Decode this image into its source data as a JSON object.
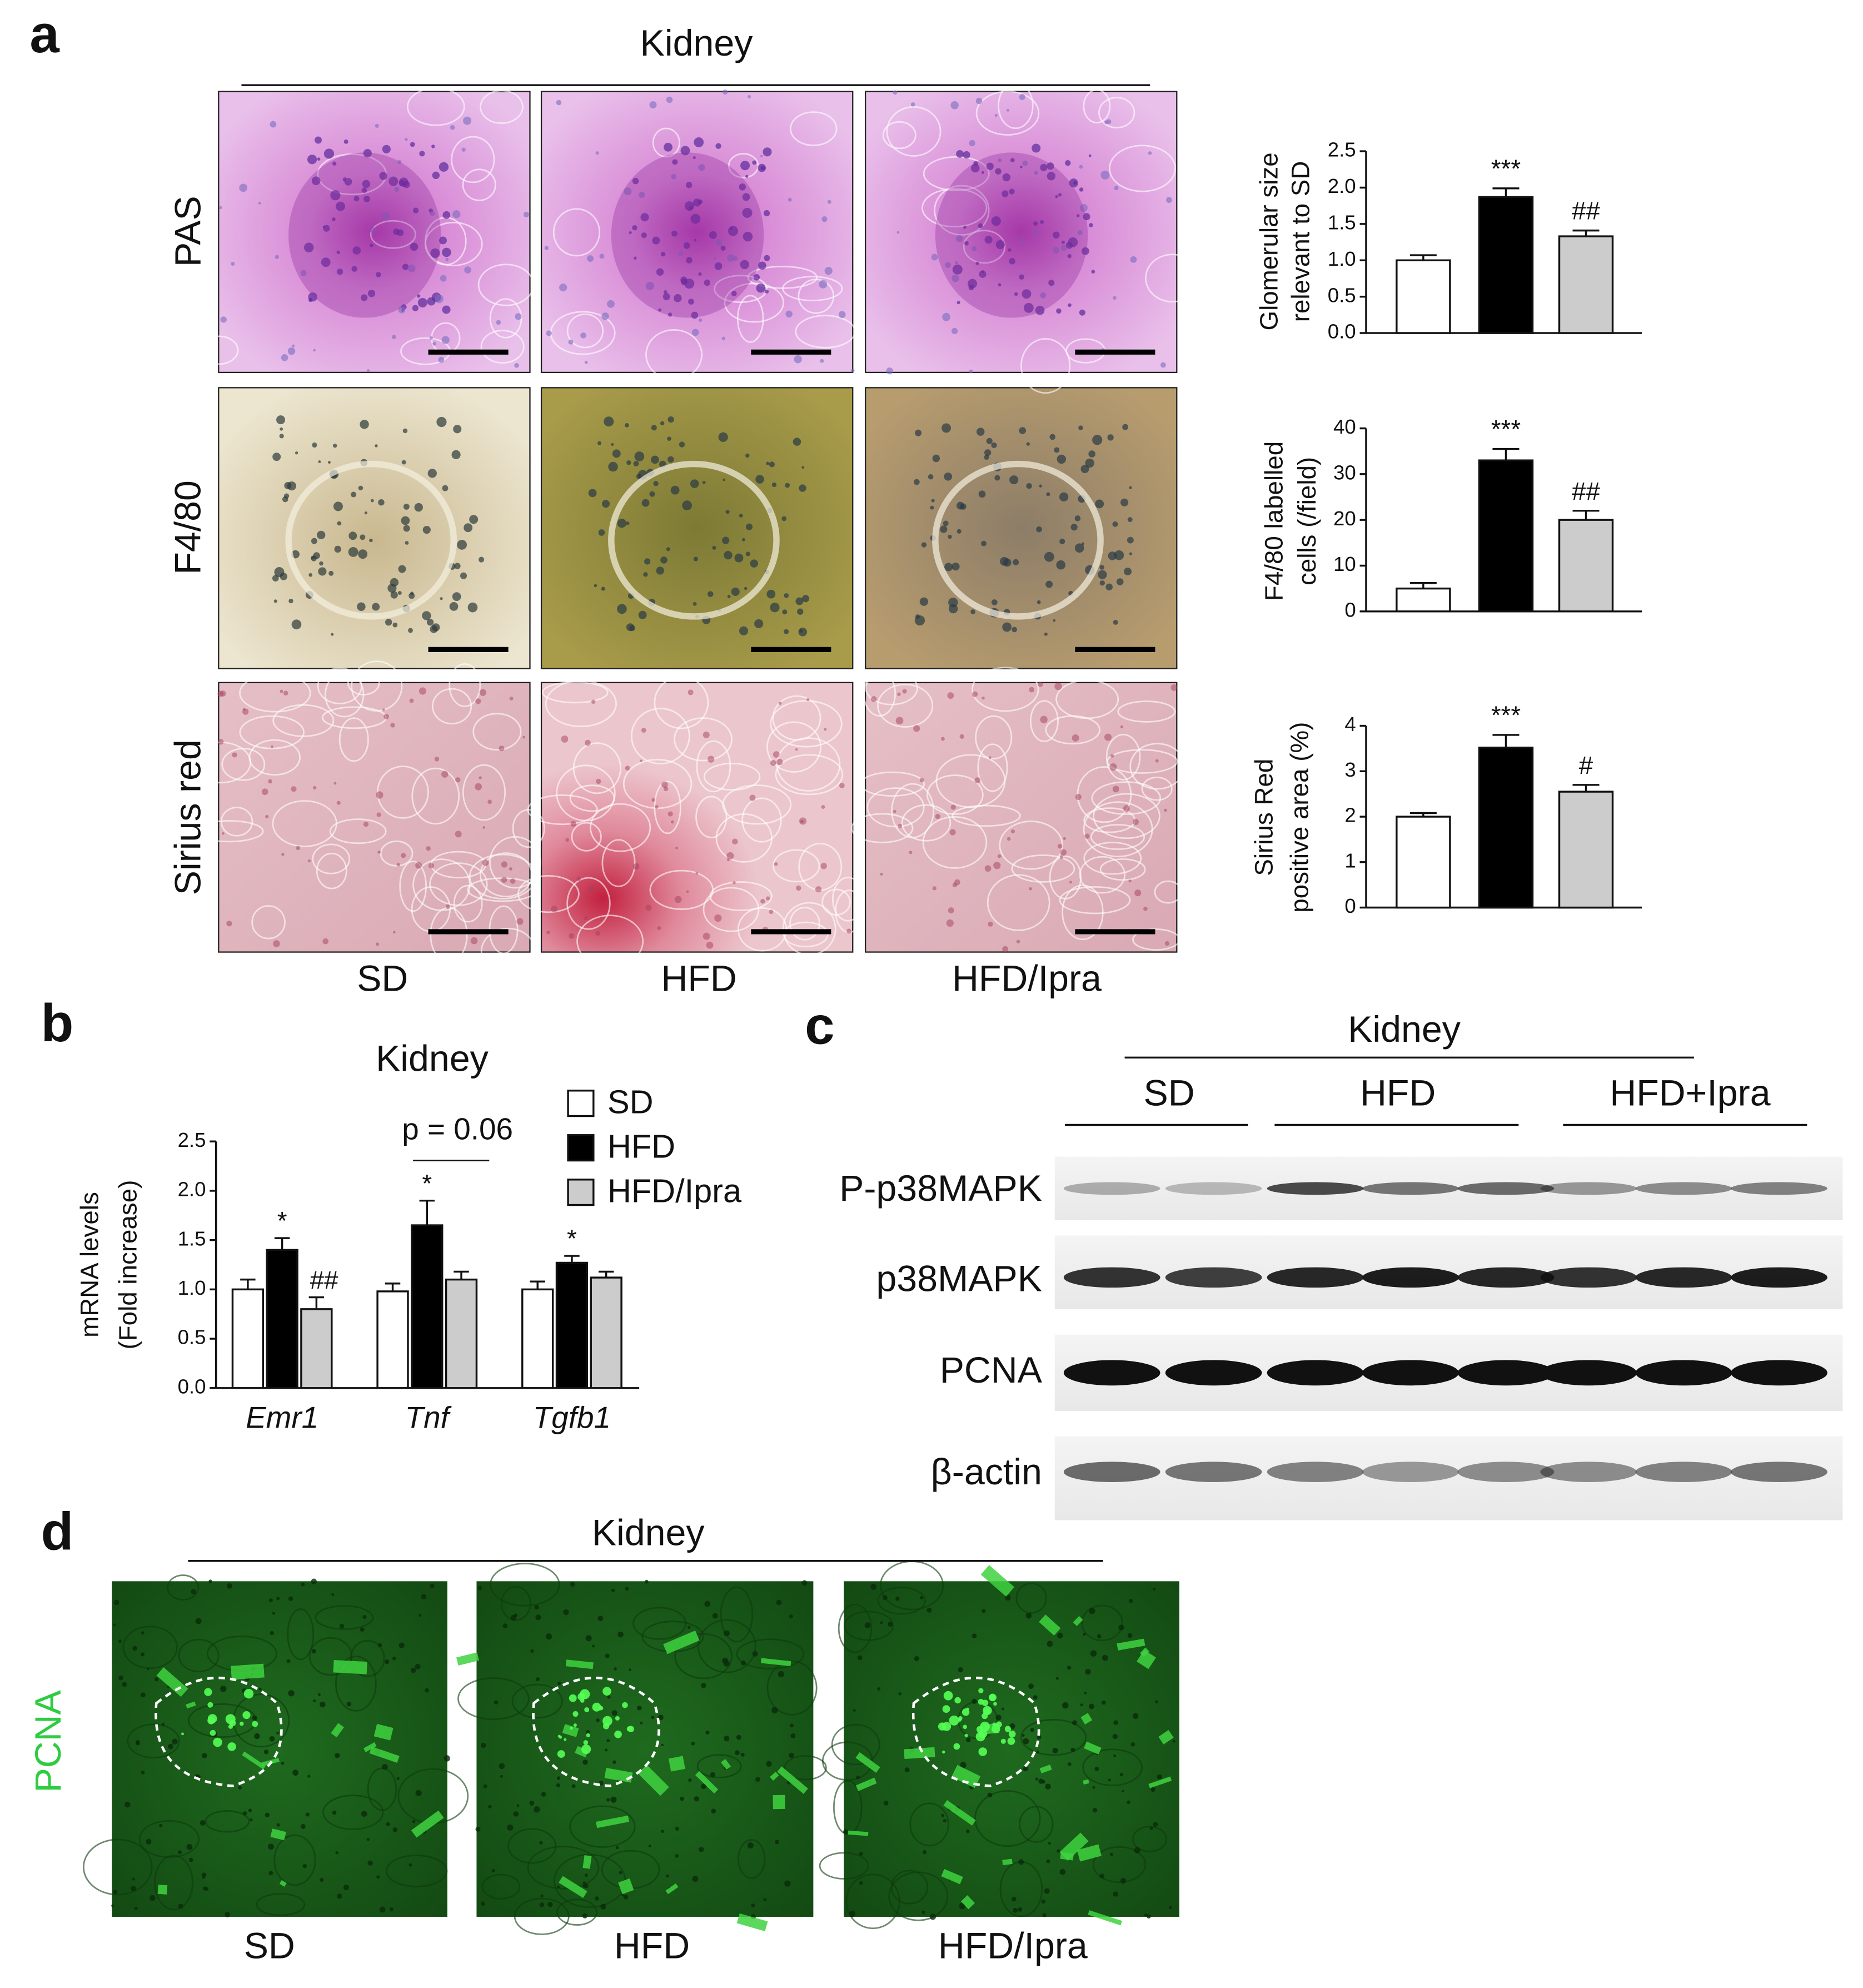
{
  "panel_labels": [
    "a",
    "b",
    "c",
    "d"
  ],
  "panel_a": {
    "title": "Kidney",
    "rows": [
      "PAS",
      "F4/80",
      "Sirius red"
    ],
    "columns": [
      "SD",
      "HFD",
      "HFD/Ipra"
    ]
  },
  "panel_c": {
    "title": "Kidney",
    "groups": [
      "SD",
      "HFD",
      "HFD+Ipra"
    ],
    "rows": [
      "P-p38MAPK",
      "p38MAPK",
      "PCNA",
      "β-actin"
    ]
  },
  "panel_d": {
    "title": "Kidney",
    "stain": "PCNA",
    "columns": [
      "SD",
      "HFD",
      "HFD/Ipra"
    ]
  },
  "chart_data": [
    {
      "type": "bar",
      "ylabel": [
        "Glomerular size",
        "relevant to SD"
      ],
      "values": [
        1.0,
        1.87,
        1.33
      ],
      "errors": [
        0.07,
        0.12,
        0.08
      ],
      "colors": [
        "#ffffff",
        "#000000",
        "#cccccc"
      ],
      "annotations": [
        null,
        "***",
        "##"
      ],
      "ylim": [
        0,
        2.5
      ],
      "yticks": [
        {
          "value": 0,
          "label": "0.0"
        },
        0.5,
        {
          "value": 1,
          "label": "1.0"
        },
        1.5,
        {
          "value": 2,
          "label": "2.0"
        },
        2.5
      ]
    },
    {
      "type": "bar",
      "ylabel": [
        "F4/80 labelled",
        "cells (/field)"
      ],
      "values": [
        5,
        33,
        20
      ],
      "errors": [
        1.2,
        2.5,
        2.0
      ],
      "colors": [
        "#ffffff",
        "#000000",
        "#cccccc"
      ],
      "annotations": [
        null,
        "***",
        "##"
      ],
      "ylim": [
        0,
        40
      ],
      "yticks": [
        0,
        10,
        20,
        30,
        40
      ]
    },
    {
      "type": "bar",
      "ylabel": [
        "Sirius Red",
        "positive area (%)"
      ],
      "values": [
        2.0,
        3.52,
        2.55
      ],
      "errors": [
        0.08,
        0.28,
        0.15
      ],
      "colors": [
        "#ffffff",
        "#000000",
        "#cccccc"
      ],
      "annotations": [
        null,
        "***",
        "#"
      ],
      "ylim": [
        0,
        4
      ],
      "yticks": [
        0,
        1,
        2,
        3,
        4
      ]
    },
    {
      "type": "grouped_bar",
      "title": "Kidney",
      "ylabel": [
        "mRNA levels",
        "(Fold increase)"
      ],
      "categories": [
        "Emr1",
        "Tnf",
        "Tgfb1"
      ],
      "series": [
        {
          "name": "SD",
          "color": "#ffffff",
          "values": [
            1.0,
            0.98,
            1.0
          ],
          "errors": [
            0.1,
            0.08,
            0.08
          ]
        },
        {
          "name": "HFD",
          "color": "#000000",
          "values": [
            1.4,
            1.65,
            1.27
          ],
          "errors": [
            0.12,
            0.25,
            0.07
          ],
          "annotations": [
            "*",
            "*",
            "*"
          ]
        },
        {
          "name": "HFD/Ipra",
          "color": "#cccccc",
          "values": [
            0.8,
            1.1,
            1.12
          ],
          "errors": [
            0.12,
            0.08,
            0.06
          ],
          "annotations": [
            "##",
            null,
            null
          ]
        }
      ],
      "p_value_label": "p = 0.06",
      "ylim": [
        0,
        2.5
      ],
      "yticks": [
        {
          "value": 0,
          "label": "0.0"
        },
        0.5,
        {
          "value": 1,
          "label": "1.0"
        },
        1.5,
        {
          "value": 2,
          "label": "2.0"
        },
        2.5
      ]
    }
  ]
}
